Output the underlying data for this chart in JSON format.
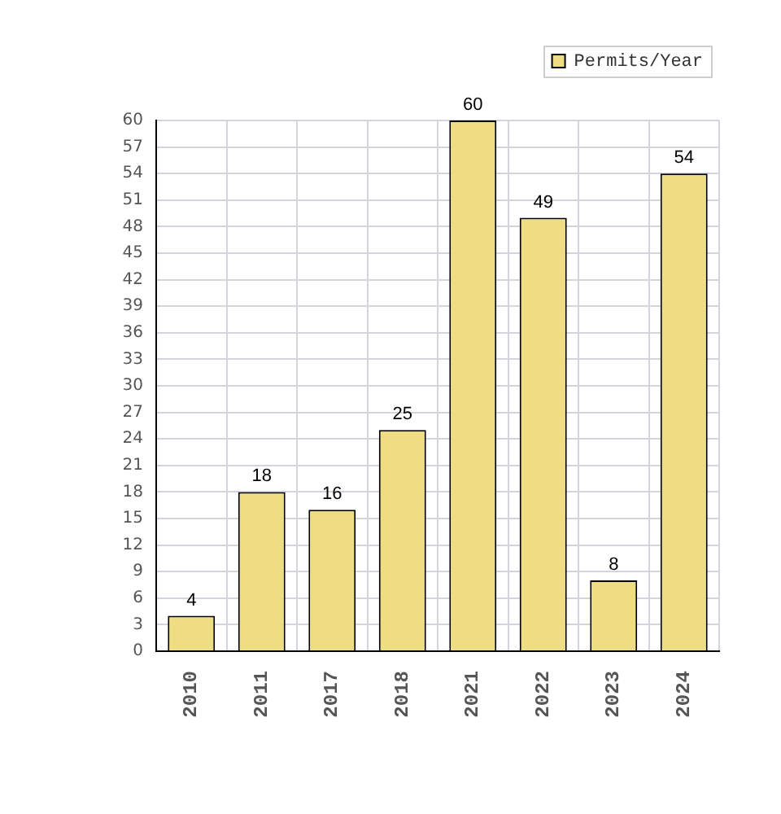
{
  "chart_data": {
    "type": "bar",
    "categories": [
      "2010",
      "2011",
      "2017",
      "2018",
      "2021",
      "2022",
      "2023",
      "2024"
    ],
    "series": [
      {
        "name": "Permits/Year",
        "color": "#eedd82",
        "values": [
          4,
          18,
          16,
          25,
          60,
          49,
          8,
          54
        ]
      }
    ],
    "ylim": [
      0,
      60
    ],
    "yticks": [
      0,
      3,
      6,
      9,
      12,
      15,
      18,
      21,
      24,
      27,
      30,
      33,
      36,
      39,
      42,
      45,
      48,
      51,
      54,
      57,
      60
    ],
    "grid": true,
    "legend": "top right",
    "data_labels": true
  }
}
